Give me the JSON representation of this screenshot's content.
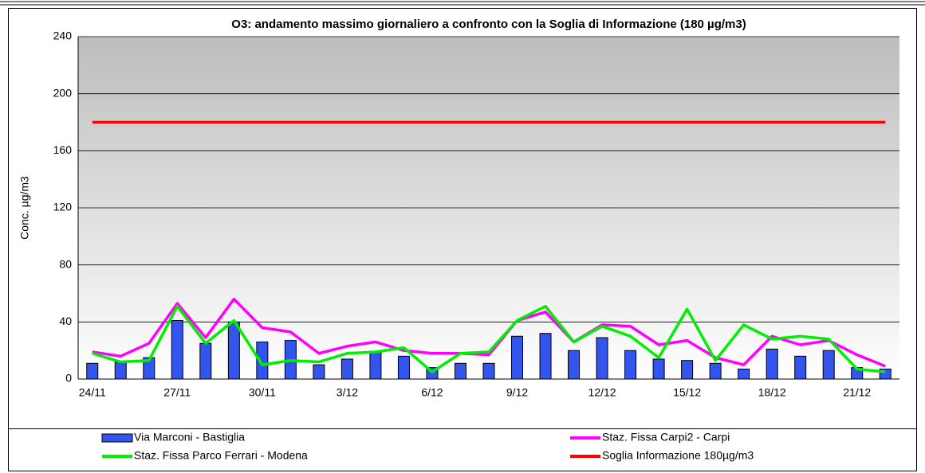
{
  "chart_data": {
    "type": "combo",
    "title": "O3: andamento massimo giornaliero a confronto con la Soglia di Informazione (180 µg/m3)",
    "y_label": "Conc. µg/m3",
    "categories": [
      "24/11",
      null,
      null,
      "27/11",
      null,
      null,
      "30/11",
      null,
      null,
      "3/12",
      null,
      null,
      "6/12",
      null,
      null,
      "9/12",
      null,
      null,
      "12/12",
      null,
      null,
      "15/12",
      null,
      null,
      "18/12",
      null,
      null,
      "21/12",
      null
    ],
    "series": [
      {
        "name": "Via Marconi - Bastiglia",
        "type": "bar",
        "color": "#3355ee",
        "values": [
          11,
          12,
          15,
          41,
          25,
          40,
          26,
          27,
          10,
          14,
          19,
          16,
          8,
          11,
          11,
          30,
          32,
          20,
          29,
          20,
          14,
          13,
          11,
          7,
          21,
          16,
          20,
          8,
          7
        ]
      },
      {
        "name": "Staz. Fissa Carpi2 - Carpi",
        "type": "line",
        "color": "#ff00ff",
        "values": [
          19,
          16,
          25,
          53,
          29,
          56,
          36,
          33,
          18,
          23,
          26,
          20,
          18,
          18,
          17,
          41,
          47,
          26,
          38,
          37,
          24,
          27,
          15,
          10,
          30,
          24,
          27,
          17,
          9
        ]
      },
      {
        "name": "Staz. Fissa Parco Ferrari - Modena",
        "type": "line",
        "color": "#00ee00",
        "values": [
          18,
          12,
          13,
          51,
          25,
          41,
          10,
          13,
          12,
          18,
          19,
          22,
          5,
          18,
          19,
          41,
          51,
          26,
          37,
          30,
          15,
          49,
          13,
          38,
          28,
          30,
          28,
          7,
          5
        ]
      },
      {
        "name": "Soglia Informazione 180µg/m3",
        "type": "line",
        "color": "#ff0000",
        "values": [
          180,
          180,
          180,
          180,
          180,
          180,
          180,
          180,
          180,
          180,
          180,
          180,
          180,
          180,
          180,
          180,
          180,
          180,
          180,
          180,
          180,
          180,
          180,
          180,
          180,
          180,
          180,
          180,
          180
        ]
      }
    ],
    "ylim": [
      0,
      240
    ],
    "yticks": [
      0,
      40,
      80,
      120,
      160,
      200,
      240
    ],
    "grid": true
  }
}
